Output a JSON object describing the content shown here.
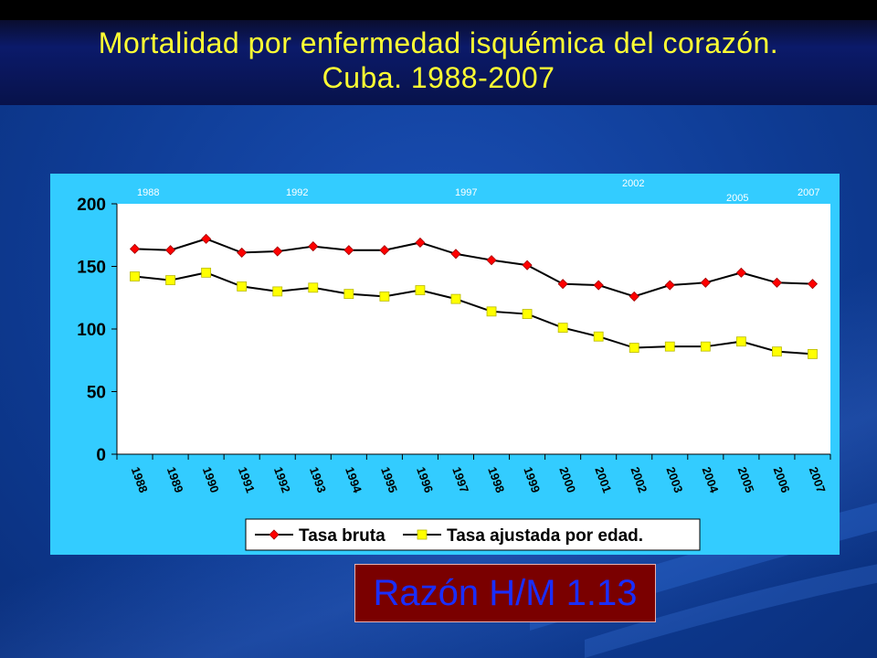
{
  "slide": {
    "title_line1": "Mortalidad por enfermedad isquémica del corazón.",
    "title_line2": "Cuba. 1988-2007",
    "ratio_label": "Razón H/M 1.13"
  },
  "colors": {
    "title": "#ffff33",
    "panel": "#33ccff",
    "series_bruta": "#ff0000",
    "series_ajustada": "#ffff00",
    "ratio_bg": "#7a0000",
    "ratio_text": "#1a2eff"
  },
  "chart_data": {
    "type": "line",
    "categories": [
      "1988",
      "1989",
      "1990",
      "1991",
      "1992",
      "1993",
      "1994",
      "1995",
      "1996",
      "1997",
      "1998",
      "1999",
      "2000",
      "2001",
      "2002",
      "2003",
      "2004",
      "2005",
      "2006",
      "2007"
    ],
    "series": [
      {
        "name": "Tasa bruta",
        "marker": "diamond",
        "values": [
          164,
          163,
          172,
          161,
          162,
          166,
          163,
          163,
          169,
          160,
          155,
          151,
          136,
          135,
          126,
          135,
          137,
          145,
          137,
          136
        ]
      },
      {
        "name": "Tasa ajustada por edad.",
        "marker": "square",
        "values": [
          142,
          139,
          145,
          134,
          130,
          133,
          128,
          126,
          131,
          124,
          114,
          112,
          101,
          94,
          85,
          86,
          86,
          90,
          82,
          80
        ]
      }
    ],
    "ylim": [
      0,
      200
    ],
    "yticks": [
      0,
      50,
      100,
      150,
      200
    ],
    "legend": "bottom",
    "year_annotations": [
      "1988",
      "1992",
      "1997",
      "2002",
      "2005",
      "2007"
    ],
    "title": "",
    "xlabel": "",
    "ylabel": ""
  }
}
